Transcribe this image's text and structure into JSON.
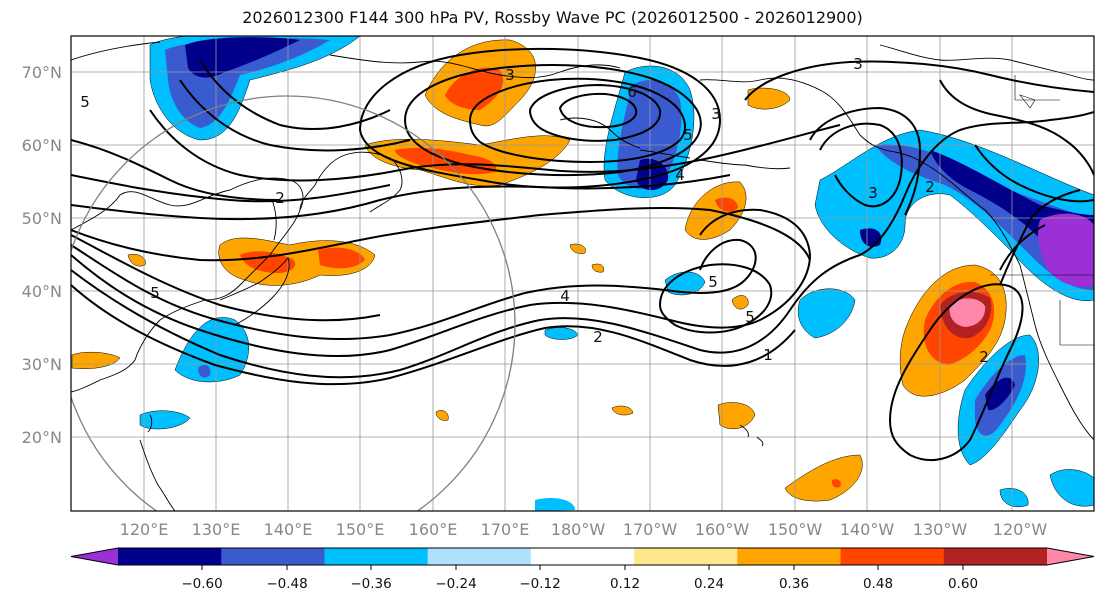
{
  "title": "2026012300 F144 300 hPa PV, Rossby Wave PC (2026012500 - 2026012900)",
  "map": {
    "lat_labels": [
      "70°N",
      "60°N",
      "50°N",
      "40°N",
      "30°N",
      "20°N"
    ],
    "lon_labels": [
      "120°E",
      "130°E",
      "140°E",
      "150°E",
      "160°E",
      "170°E",
      "180°W",
      "170°W",
      "160°W",
      "150°W",
      "140°W",
      "130°W",
      "120°W"
    ],
    "contour_labels": [
      "5",
      "2",
      "3",
      "5",
      "6",
      "3",
      "5",
      "4",
      "3",
      "3",
      "4",
      "2",
      "5",
      "5",
      "1",
      "2",
      "2"
    ]
  },
  "colorbar": {
    "ticks": [
      "−0.60",
      "−0.48",
      "−0.36",
      "−0.24",
      "−0.12",
      "0.12",
      "0.24",
      "0.36",
      "0.48",
      "0.60"
    ],
    "colors": [
      "#9b30d6",
      "#00008b",
      "#3a5bd0",
      "#00bfff",
      "#b0e2ff",
      "#ffffff",
      "#ffe88a",
      "#ffa500",
      "#ff4500",
      "#b22222",
      "#ff88aa"
    ]
  },
  "colors": {
    "pv_contour": "#000000",
    "coastline": "#000000",
    "gridline": "#999999",
    "circle": "#808080"
  }
}
